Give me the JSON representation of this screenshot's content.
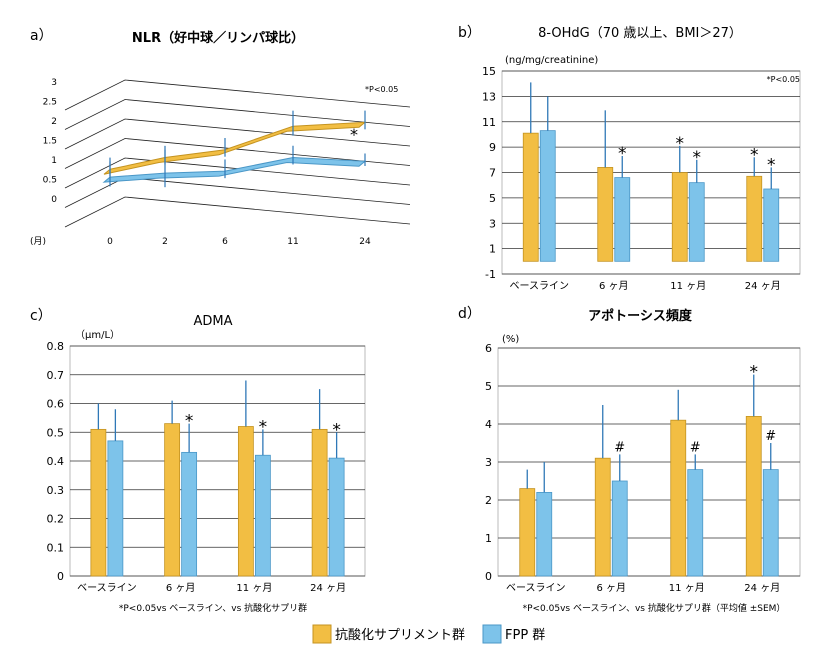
{
  "colors": {
    "orange": "#F2BE43",
    "orange_stroke": "#C49320",
    "blue": "#7DC3EA",
    "blue_stroke": "#4A97C7",
    "error": "#2F78B7",
    "grid": "#333333"
  },
  "legend": [
    {
      "label": "抗酸化サプリメント群",
      "color": "#F2BE43"
    },
    {
      "label": "FPP 群",
      "color": "#7DC3EA"
    }
  ],
  "chart_data": [
    {
      "id": "a",
      "panel_label": "a）",
      "type": "line",
      "title": "NLR（好中球／リンパ球比）",
      "note": "*P<0.05",
      "x_unit_label": "(月)",
      "x": [
        "0",
        "2",
        "6",
        "11",
        "24"
      ],
      "y_ticks": [
        "3",
        "2.5",
        "2",
        "1.5",
        "1",
        "0.5",
        "0"
      ],
      "ylim": [
        0,
        3
      ],
      "series": [
        {
          "values": [
            1.3,
            1.55,
            1.7,
            2.25,
            2.3
          ],
          "error": [
            0.3,
            0.3,
            0.3,
            0.4,
            0.3
          ]
        },
        {
          "values": [
            1.1,
            1.15,
            1.15,
            1.45,
            1.3
          ],
          "error": [
            0.4,
            0.6,
            0.3,
            0.3,
            0.2
          ]
        }
      ],
      "markers": [
        {
          "text": "*",
          "x": "24"
        }
      ]
    },
    {
      "id": "b",
      "panel_label": "b）",
      "type": "bar",
      "title": "8-OHdG（70 歳以上、BMI＞27）",
      "ylabel": "(ng/mg/creatinine)",
      "note": "*P<0.05",
      "categories": [
        "ベースライン",
        "6 ヶ月",
        "11 ヶ月",
        "24 ヶ月"
      ],
      "ylim": [
        -1,
        15
      ],
      "y_ticks": [
        "15",
        "13",
        "11",
        "9",
        "7",
        "5",
        "3",
        "1",
        "-1"
      ],
      "series": [
        {
          "values": [
            10.1,
            7.4,
            7.0,
            6.7
          ],
          "error": [
            4.0,
            4.5,
            2.1,
            1.5
          ]
        },
        {
          "values": [
            10.3,
            6.6,
            6.2,
            5.7
          ],
          "error": [
            2.7,
            1.7,
            1.8,
            1.7
          ]
        }
      ],
      "markers": [
        {
          "text": "",
          "s1": "",
          "s2": ""
        },
        {
          "s1": "",
          "s2": "*"
        },
        {
          "s1": "*",
          "s2": "*"
        },
        {
          "s1": "*",
          "s2": "*"
        }
      ]
    },
    {
      "id": "c",
      "panel_label": "c）",
      "type": "bar",
      "title": "ADMA",
      "ylabel": "（μm/L）",
      "footnote": "*P<0.05vs ベースライン、vs 抗酸化サプリ群",
      "categories": [
        "ベースライン",
        "6 ヶ月",
        "11 ヶ月",
        "24 ヶ月"
      ],
      "ylim": [
        0,
        0.8
      ],
      "y_ticks": [
        "0.8",
        "0.7",
        "0.6",
        "0.5",
        "0.4",
        "0.3",
        "0.2",
        "0.1",
        "0"
      ],
      "series": [
        {
          "values": [
            0.51,
            0.53,
            0.52,
            0.51
          ],
          "error": [
            0.09,
            0.08,
            0.16,
            0.14
          ]
        },
        {
          "values": [
            0.47,
            0.43,
            0.42,
            0.41
          ],
          "error": [
            0.11,
            0.1,
            0.09,
            0.09
          ]
        }
      ],
      "markers": [
        {
          "s1": "",
          "s2": ""
        },
        {
          "s1": "",
          "s2": "*"
        },
        {
          "s1": "",
          "s2": "*"
        },
        {
          "s1": "",
          "s2": "*"
        }
      ]
    },
    {
      "id": "d",
      "panel_label": "d）",
      "type": "bar",
      "title": "アポトーシス頻度",
      "ylabel": "(%)",
      "footnote": "*P<0.05vs ベースライン、vs 抗酸化サプリ群（平均値 ±SEM）",
      "categories": [
        "ベースライン",
        "6 ヶ月",
        "11 ヶ月",
        "24 ヶ月"
      ],
      "ylim": [
        0,
        6
      ],
      "y_ticks": [
        "6",
        "5",
        "4",
        "3",
        "2",
        "1",
        "0"
      ],
      "series": [
        {
          "values": [
            2.3,
            3.1,
            4.1,
            4.2
          ],
          "error": [
            0.5,
            1.4,
            0.8,
            1.1
          ]
        },
        {
          "values": [
            2.2,
            2.5,
            2.8,
            2.8
          ],
          "error": [
            0.8,
            0.7,
            0.4,
            0.7
          ]
        }
      ],
      "markers": [
        {
          "s1": "",
          "s2": ""
        },
        {
          "s1": "",
          "s2": "#"
        },
        {
          "s1": "",
          "s2": "#"
        },
        {
          "s1": "*",
          "s2": "#"
        }
      ]
    }
  ]
}
